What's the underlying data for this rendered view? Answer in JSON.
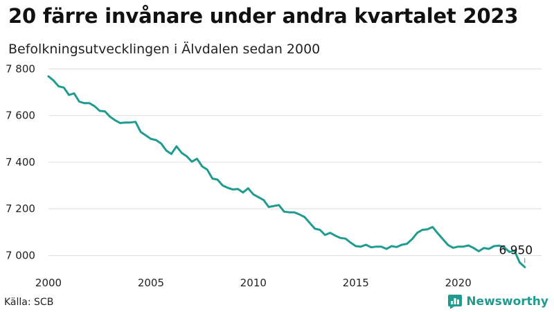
{
  "title": "20 färre invånare under andra kvartalet 2023",
  "subtitle": "Befolkningsutvecklingen i Älvdalen sedan 2000",
  "source": "Källa: SCB",
  "brand": "Newsworthy",
  "colors": {
    "line": "#1f9b8f",
    "grid": "#dddddd",
    "brand": "#1f9b8f"
  },
  "chart_data": {
    "type": "line",
    "title": "20 färre invånare under andra kvartalet 2023",
    "subtitle": "Befolkningsutvecklingen i Älvdalen sedan 2000",
    "xlabel": "",
    "ylabel": "",
    "xlim": [
      2000,
      2024
    ],
    "ylim": [
      6930,
      7810
    ],
    "x_ticks": [
      2000,
      2005,
      2010,
      2015,
      2020
    ],
    "y_ticks": [
      7000,
      7200,
      7400,
      7600,
      7800
    ],
    "y_tick_labels": [
      "7 000",
      "7 200",
      "7 400",
      "7 600",
      "7 800"
    ],
    "grid": "horizontal",
    "last_value_label": "6 950",
    "x": [
      2000.0,
      2000.25,
      2000.5,
      2000.75,
      2001.0,
      2001.25,
      2001.5,
      2001.75,
      2002.0,
      2002.25,
      2002.5,
      2002.75,
      2003.0,
      2003.25,
      2003.5,
      2003.75,
      2004.0,
      2004.25,
      2004.5,
      2004.75,
      2005.0,
      2005.25,
      2005.5,
      2005.75,
      2006.0,
      2006.25,
      2006.5,
      2006.75,
      2007.0,
      2007.25,
      2007.5,
      2007.75,
      2008.0,
      2008.25,
      2008.5,
      2008.75,
      2009.0,
      2009.25,
      2009.5,
      2009.75,
      2010.0,
      2010.25,
      2010.5,
      2010.75,
      2011.0,
      2011.25,
      2011.5,
      2011.75,
      2012.0,
      2012.25,
      2012.5,
      2012.75,
      2013.0,
      2013.25,
      2013.5,
      2013.75,
      2014.0,
      2014.25,
      2014.5,
      2014.75,
      2015.0,
      2015.25,
      2015.5,
      2015.75,
      2016.0,
      2016.25,
      2016.5,
      2016.75,
      2017.0,
      2017.25,
      2017.5,
      2017.75,
      2018.0,
      2018.25,
      2018.5,
      2018.75,
      2019.0,
      2019.25,
      2019.5,
      2019.75,
      2020.0,
      2020.25,
      2020.5,
      2020.75,
      2021.0,
      2021.25,
      2021.5,
      2021.75,
      2022.0,
      2022.25,
      2022.5,
      2022.75,
      2023.0,
      2023.25
    ],
    "series": [
      {
        "values": [
          7768,
          7750,
          7725,
          7720,
          7688,
          7695,
          7660,
          7653,
          7653,
          7640,
          7620,
          7618,
          7595,
          7580,
          7568,
          7570,
          7570,
          7573,
          7530,
          7515,
          7500,
          7495,
          7480,
          7450,
          7435,
          7468,
          7440,
          7425,
          7402,
          7415,
          7382,
          7368,
          7330,
          7325,
          7300,
          7290,
          7283,
          7285,
          7270,
          7288,
          7262,
          7250,
          7238,
          7208,
          7212,
          7216,
          7188,
          7185,
          7185,
          7176,
          7165,
          7140,
          7115,
          7110,
          7088,
          7097,
          7085,
          7075,
          7072,
          7055,
          7040,
          7038,
          7046,
          7035,
          7038,
          7038,
          7028,
          7040,
          7036,
          7046,
          7050,
          7070,
          7097,
          7110,
          7112,
          7122,
          7095,
          7070,
          7045,
          7033,
          7038,
          7038,
          7043,
          7032,
          7018,
          7032,
          7028,
          7040,
          7042,
          7035,
          7015,
          7020,
          6970,
          6950
        ]
      }
    ]
  }
}
